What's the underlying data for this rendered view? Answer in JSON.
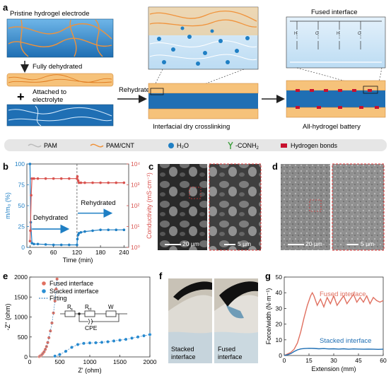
{
  "panel_letters": [
    "a",
    "b",
    "c",
    "d",
    "e",
    "f",
    "g"
  ],
  "panel_a": {
    "pristine_label": "Pristine hydrogel electrode",
    "fully_dehydrated_label": "Fully dehydrated",
    "plus_sign": "+",
    "attached_label_line1": "Attached to",
    "attached_label_line2": "electrolyte",
    "rehydrated_label": "Rehydrated",
    "interfacial_label": "Interfacial dry crosslinking",
    "fused_interface_label": "Fused interface",
    "all_hydrogel_label": "All-hydrogel battery",
    "legend": [
      {
        "label": "PAM"
      },
      {
        "label": "PAM/CNT"
      },
      {
        "label": "H₂O"
      },
      {
        "label": "-CONH",
        "sub": "2"
      },
      {
        "label": "Hydrogen bonds"
      }
    ],
    "colors": {
      "blue": "#1f7fc4",
      "orange": "#f0923a",
      "legend_bar": "#e6e6e6",
      "hbond": "#c8102e"
    }
  },
  "panel_b": {
    "chart_data": {
      "type": "line",
      "xlabel": "Time (min)",
      "ylabel_left": "m/m₀ (%)",
      "ylabel_right": "Conductivity (mS·cm⁻¹)",
      "x_ticks": [
        "0",
        "60",
        "120",
        "180",
        "240"
      ],
      "xlim": [
        -8,
        252
      ],
      "ylim_left": [
        0,
        100
      ],
      "y_ticks_left": [
        "0",
        "25",
        "50",
        "75",
        "100"
      ],
      "ylim_right_log": [
        0,
        4
      ],
      "y_ticks_right": [
        "10⁰",
        "10¹",
        "10²",
        "10³",
        "10⁴"
      ],
      "annotations": [
        "Dehydrated",
        "Rehydrated"
      ],
      "series": [
        {
          "axis": "left",
          "color": "#1f7fc4",
          "x": [
            0,
            2,
            5,
            10,
            20,
            40,
            60,
            80,
            100,
            120,
            121,
            123,
            125,
            130,
            140,
            160,
            180,
            200,
            220,
            240
          ],
          "y": [
            100,
            30,
            5,
            4,
            4,
            3.5,
            3,
            3,
            3,
            3,
            10,
            15,
            17,
            18,
            19,
            20,
            21,
            21,
            21,
            21
          ]
        },
        {
          "axis": "right",
          "color": "#d9534f",
          "x": [
            0,
            1,
            3,
            5,
            10,
            20,
            40,
            60,
            80,
            100,
            120,
            121,
            123,
            125,
            130,
            140,
            160,
            180,
            200,
            220,
            240
          ],
          "y_log": [
            0.3,
            0.8,
            2.5,
            3.3,
            3.3,
            3.3,
            3.3,
            3.3,
            3.3,
            3.3,
            3.3,
            3.4,
            3.2,
            3.1,
            3.1,
            3.1,
            3.1,
            3.1,
            3.1,
            3.1,
            3.1
          ]
        }
      ]
    }
  },
  "panel_c": {
    "scale_left": "20 µm",
    "scale_right": "5 µm"
  },
  "panel_d": {
    "scale_left": "20 µm",
    "scale_right": "5 µm"
  },
  "panel_e": {
    "chart_data": {
      "type": "scatter",
      "xlabel": "Z' (ohm)",
      "ylabel": "-Z'' (ohm)",
      "xlim": [
        0,
        2000
      ],
      "ylim": [
        0,
        2000
      ],
      "x_ticks": [
        "0",
        "500",
        "1000",
        "1500",
        "2000"
      ],
      "y_ticks": [
        "0",
        "500",
        "1000",
        "1500",
        "2000"
      ],
      "legend": [
        "Fused interface",
        "Stacked interface",
        "Fitting"
      ],
      "circuit_labels": {
        "rs": "R",
        "rs_sub": "s",
        "rct": "R",
        "rct_sub": "ct",
        "w": "W",
        "cpe": "CPE"
      },
      "series": [
        {
          "name": "Fused interface",
          "color": "#e07060",
          "x": [
            160,
            175,
            190,
            205,
            220,
            240,
            260,
            280,
            300,
            320,
            345,
            370,
            395,
            420,
            440,
            455
          ],
          "y": [
            10,
            25,
            40,
            60,
            90,
            130,
            190,
            260,
            360,
            480,
            650,
            850,
            1100,
            1400,
            1700,
            1950
          ]
        },
        {
          "name": "Stacked interface",
          "color": "#2a8fd4",
          "x": [
            420,
            500,
            600,
            700,
            800,
            900,
            1000,
            1100,
            1200,
            1300,
            1400,
            1500,
            1600,
            1700,
            1800,
            1900,
            2000
          ],
          "y": [
            20,
            60,
            140,
            240,
            310,
            340,
            350,
            355,
            365,
            380,
            400,
            420,
            440,
            470,
            500,
            530,
            560
          ]
        }
      ]
    }
  },
  "panel_f": {
    "left_label_1": "Stacked",
    "left_label_2": "interface",
    "right_label_1": "Fused",
    "right_label_2": "interface"
  },
  "panel_g": {
    "chart_data": {
      "type": "line",
      "xlabel": "Extension (mm)",
      "ylabel": "Force/width (N·m⁻¹)",
      "xlim": [
        0,
        60
      ],
      "ylim": [
        0,
        50
      ],
      "x_ticks": [
        "0",
        "15",
        "30",
        "45",
        "60"
      ],
      "y_ticks": [
        "0",
        "10",
        "20",
        "30",
        "40",
        "50"
      ],
      "series": [
        {
          "name": "Fused interface",
          "color": "#e07060",
          "x": [
            0,
            2,
            4,
            6,
            8,
            10,
            12,
            14,
            16,
            17,
            18,
            20,
            22,
            24,
            26,
            28,
            30,
            32,
            34,
            36,
            38,
            40,
            42,
            44,
            46,
            48,
            50,
            52,
            54,
            56,
            58,
            60
          ],
          "y": [
            0,
            1,
            2,
            4,
            8,
            15,
            24,
            32,
            38,
            40,
            38,
            32,
            36,
            31,
            37,
            33,
            38,
            32,
            35,
            38,
            33,
            36,
            39,
            34,
            37,
            34,
            38,
            33,
            37,
            35,
            34,
            35
          ]
        },
        {
          "name": "Stacked interface",
          "color": "#1f6fb4",
          "x": [
            0,
            2,
            4,
            6,
            8,
            10,
            12,
            15,
            18,
            21,
            24,
            27,
            30,
            33,
            36,
            39,
            42,
            45,
            48,
            51,
            54,
            57,
            60
          ],
          "y": [
            0,
            0.5,
            1.2,
            2.5,
            3.6,
            4.2,
            4.4,
            4.6,
            4.5,
            4.3,
            4.4,
            4.2,
            4.3,
            4.1,
            4.3,
            4.0,
            4.2,
            4.1,
            4.0,
            4.1,
            4.0,
            3.9,
            4.0
          ]
        }
      ]
    }
  }
}
